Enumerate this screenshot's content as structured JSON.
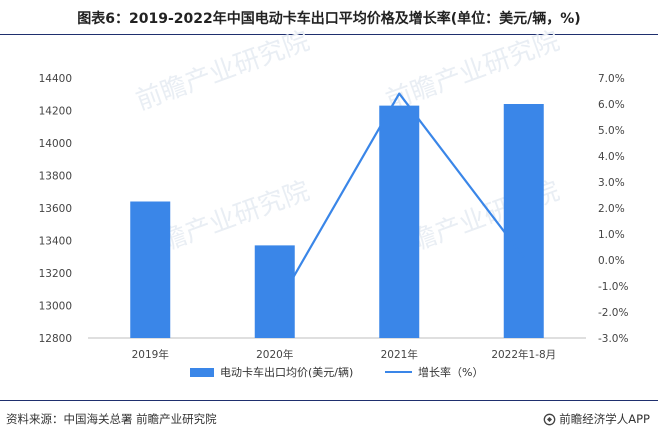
{
  "title": "图表6：2019-2022年中国电动卡车出口平均价格及增长率(单位：美元/辆，%)",
  "footer": {
    "source": "资料来源：中国海关总署 前瞻产业研究院",
    "brand": "前瞻经济学人APP"
  },
  "watermark": "前瞻产业研究院",
  "colors": {
    "bar": "#3a86e8",
    "line": "#3a86e8",
    "rule": "#1f2f6e"
  },
  "icons": {
    "brand": "brand-logo-icon"
  },
  "chart_data": {
    "type": "bar",
    "categories": [
      "2019年",
      "2020年",
      "2021年",
      "2022年1-8月"
    ],
    "series": [
      {
        "name": "电动卡车出口均价(美元/辆)",
        "type": "bar",
        "axis": "left",
        "values": [
          13640,
          13370,
          14230,
          14240
        ]
      },
      {
        "name": "增长率（%）",
        "type": "line",
        "axis": "right",
        "values": [
          null,
          -1.9,
          6.4,
          0.1
        ]
      }
    ],
    "y_left": {
      "ticks": [
        "12800",
        "13000",
        "13200",
        "13400",
        "13600",
        "13800",
        "14000",
        "14200",
        "14400"
      ],
      "min": 12800,
      "max": 14400
    },
    "y_right": {
      "ticks": [
        "-3.0%",
        "-2.0%",
        "-1.0%",
        "0.0%",
        "1.0%",
        "2.0%",
        "3.0%",
        "4.0%",
        "5.0%",
        "6.0%",
        "7.0%"
      ],
      "min": -3,
      "max": 7
    },
    "grid": false,
    "legend_position": "bottom"
  }
}
